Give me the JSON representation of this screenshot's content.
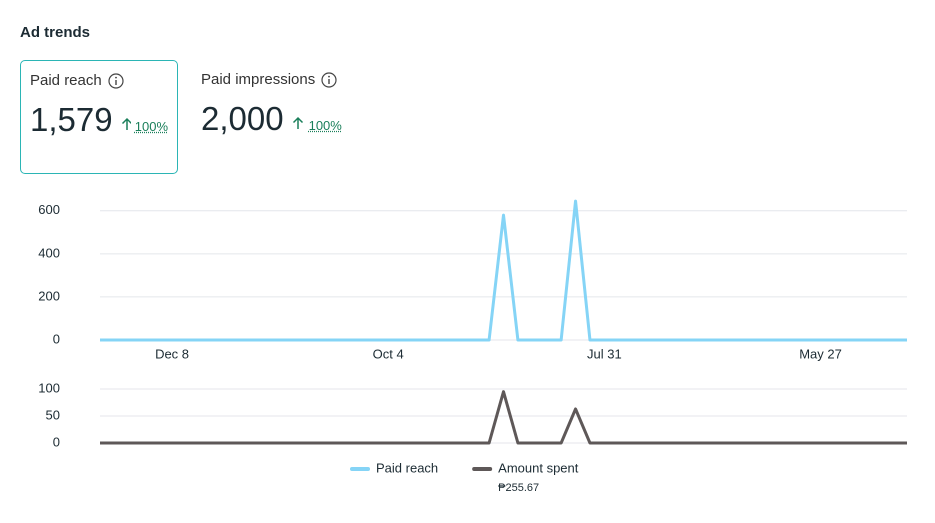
{
  "header": {
    "title": "Ad trends"
  },
  "metrics": [
    {
      "label": "Paid reach",
      "value": "1,579",
      "change": "100%"
    },
    {
      "label": "Paid impressions",
      "value": "2,000",
      "change": "100%"
    }
  ],
  "chart_data": [
    {
      "type": "line",
      "categories": [
        null,
        null,
        null,
        null,
        null,
        "Dec 8",
        null,
        null,
        null,
        null,
        null,
        null,
        null,
        null,
        null,
        null,
        null,
        null,
        null,
        null,
        "Oct 4",
        null,
        null,
        null,
        null,
        null,
        null,
        null,
        null,
        null,
        null,
        null,
        null,
        null,
        null,
        "Jul 31",
        null,
        null,
        null,
        null,
        null,
        null,
        null,
        null,
        null,
        null,
        null,
        null,
        null,
        null,
        "May 27",
        null,
        null,
        null,
        null,
        null,
        null
      ],
      "series": [
        {
          "name": "Paid reach",
          "color": "#85d4f6",
          "values": [
            0,
            0,
            0,
            0,
            0,
            0,
            0,
            0,
            0,
            0,
            0,
            0,
            0,
            0,
            0,
            0,
            0,
            0,
            0,
            0,
            0,
            0,
            0,
            0,
            0,
            0,
            0,
            0,
            580,
            0,
            0,
            0,
            0,
            645,
            0,
            0,
            0,
            0,
            0,
            0,
            0,
            0,
            0,
            0,
            0,
            0,
            0,
            0,
            0,
            0,
            0,
            0,
            0,
            0,
            0,
            0,
            0
          ]
        }
      ],
      "ylim": [
        0,
        650
      ],
      "yticks": [
        0,
        200,
        400,
        600
      ],
      "grid": true
    },
    {
      "type": "line",
      "series": [
        {
          "name": "Amount spent",
          "color": "#5e5858",
          "summary": "₱255.67",
          "values": [
            0,
            0,
            0,
            0,
            0,
            0,
            0,
            0,
            0,
            0,
            0,
            0,
            0,
            0,
            0,
            0,
            0,
            0,
            0,
            0,
            0,
            0,
            0,
            0,
            0,
            0,
            0,
            0,
            95,
            0,
            0,
            0,
            0,
            63,
            0,
            0,
            0,
            0,
            0,
            0,
            0,
            0,
            0,
            0,
            0,
            0,
            0,
            0,
            0,
            0,
            0,
            0,
            0,
            0,
            0,
            0,
            0
          ]
        }
      ],
      "ylim": [
        0,
        100
      ],
      "yticks": [
        0,
        50,
        100
      ],
      "grid": true
    }
  ]
}
